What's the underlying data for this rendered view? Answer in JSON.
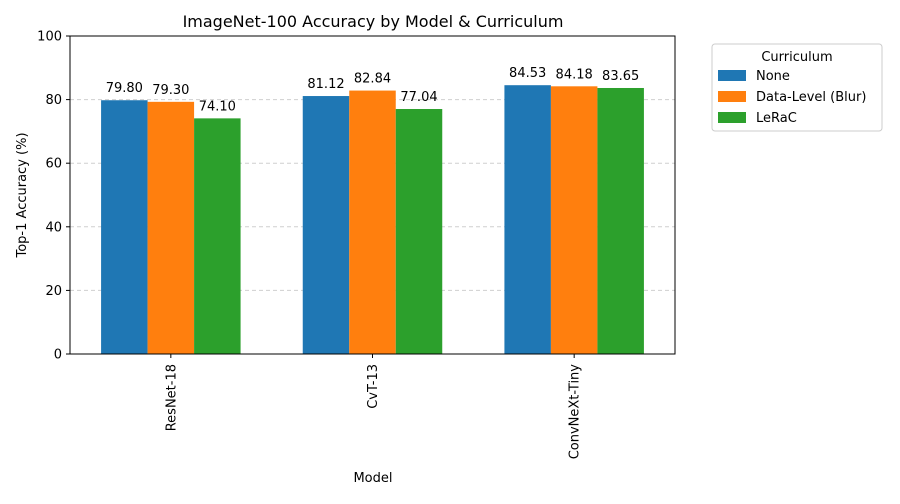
{
  "chart_data": {
    "type": "bar",
    "title": "ImageNet-100 Accuracy by Model & Curriculum",
    "xlabel": "Model",
    "ylabel": "Top-1 Accuracy (%)",
    "categories": [
      "ResNet-18",
      "CvT-13",
      "ConvNeXt-Tiny"
    ],
    "series": [
      {
        "name": "None",
        "color": "#1f77b4",
        "values": [
          79.8,
          81.12,
          84.53
        ]
      },
      {
        "name": "Data-Level (Blur)",
        "color": "#ff7f0e",
        "values": [
          79.3,
          82.84,
          84.18
        ]
      },
      {
        "name": "LeRaC",
        "color": "#2ca02c",
        "values": [
          74.1,
          77.04,
          83.65
        ]
      }
    ],
    "ylim": [
      0,
      100
    ],
    "yticks": [
      0,
      20,
      40,
      60,
      80,
      100
    ],
    "grid": "y dashed",
    "legend": {
      "title": "Curriculum",
      "placement": "outside upper right"
    },
    "value_format_decimals": 2
  }
}
